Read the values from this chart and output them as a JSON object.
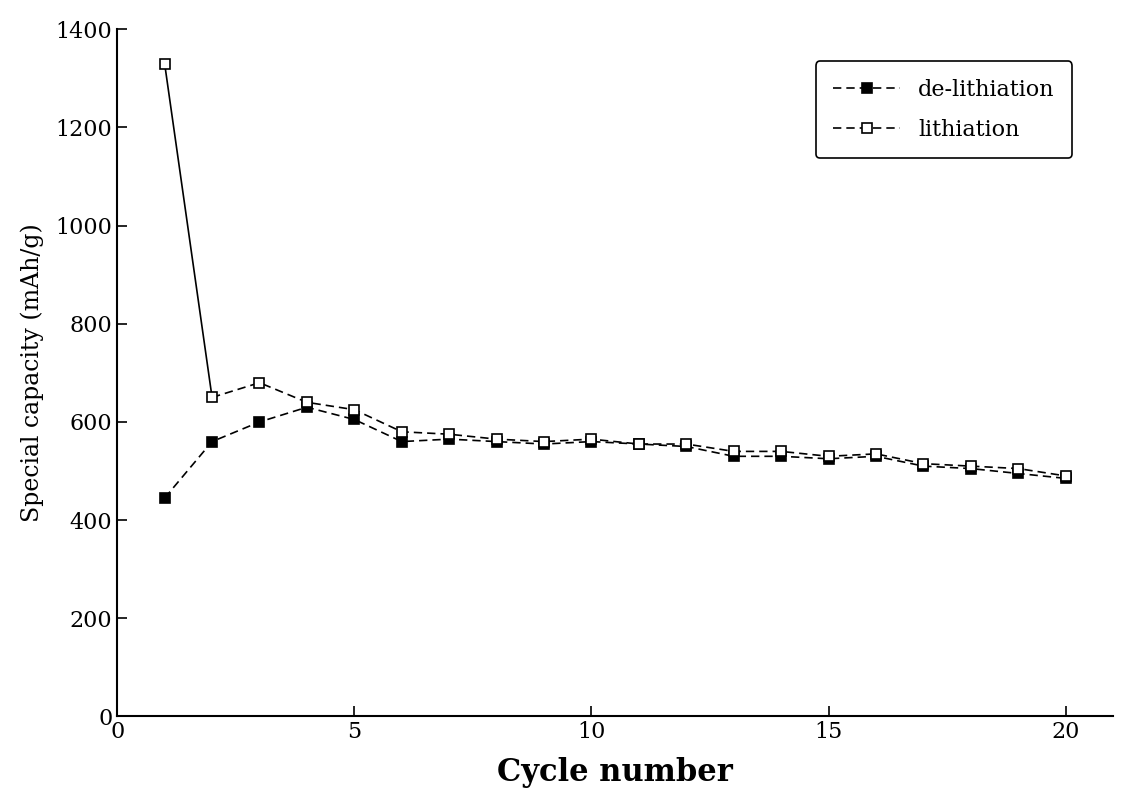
{
  "de_lithiation_x": [
    1,
    2,
    3,
    4,
    5,
    6,
    7,
    8,
    9,
    10,
    11,
    12,
    13,
    14,
    15,
    16,
    17,
    18,
    19,
    20
  ],
  "de_lithiation_y": [
    445,
    560,
    600,
    630,
    605,
    560,
    565,
    560,
    555,
    560,
    555,
    550,
    530,
    530,
    525,
    530,
    510,
    505,
    495,
    485
  ],
  "lithiation_x": [
    1,
    2,
    3,
    4,
    5,
    6,
    7,
    8,
    9,
    10,
    11,
    12,
    13,
    14,
    15,
    16,
    17,
    18,
    19,
    20
  ],
  "lithiation_y": [
    1330,
    650,
    680,
    640,
    625,
    580,
    575,
    565,
    560,
    565,
    555,
    555,
    540,
    540,
    530,
    535,
    515,
    510,
    505,
    490
  ],
  "xlabel": "Cycle number",
  "ylabel": "Special capacity (mAh/g)",
  "xlim": [
    0,
    21
  ],
  "ylim": [
    0,
    1400
  ],
  "yticks": [
    0,
    200,
    400,
    600,
    800,
    1000,
    1200,
    1400
  ],
  "xticks": [
    0,
    5,
    10,
    15,
    20
  ],
  "legend_de": "de-lithiation",
  "legend_li": "lithiation",
  "line_color": "#000000",
  "background_color": "#ffffff",
  "marker_size": 7,
  "linewidth": 1.2,
  "xlabel_fontsize": 22,
  "ylabel_fontsize": 17,
  "tick_fontsize": 16,
  "legend_fontsize": 16
}
